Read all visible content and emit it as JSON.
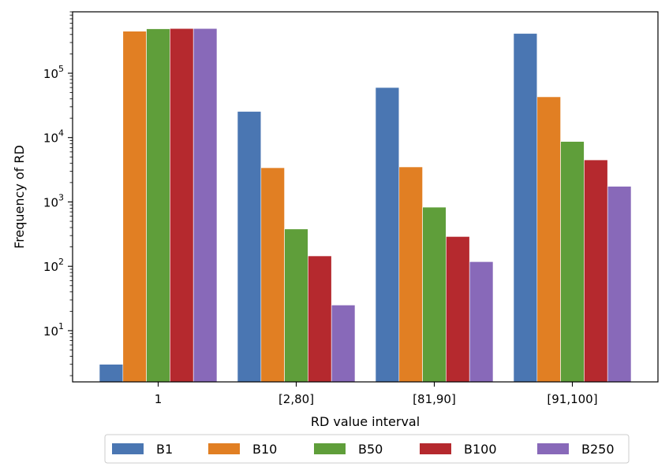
{
  "chart_data": {
    "type": "bar",
    "title": "",
    "xlabel": "RD value interval",
    "ylabel": "Frequency of RD",
    "yscale": "log",
    "ylim": [
      1.6,
      900000
    ],
    "y_ticks": [
      {
        "value": 10,
        "base": "10",
        "exp": "1"
      },
      {
        "value": 100,
        "base": "10",
        "exp": "2"
      },
      {
        "value": 1000,
        "base": "10",
        "exp": "3"
      },
      {
        "value": 10000,
        "base": "10",
        "exp": "4"
      },
      {
        "value": 100000,
        "base": "10",
        "exp": "5"
      }
    ],
    "categories": [
      "1",
      "[2,80]",
      "[81,90]",
      "[91,100]"
    ],
    "series": [
      {
        "name": "B1",
        "color": "#4a76b2",
        "values": [
          3,
          25500,
          60000,
          415000
        ]
      },
      {
        "name": "B10",
        "color": "#e17f23",
        "values": [
          450000,
          3400,
          3500,
          43000
        ]
      },
      {
        "name": "B50",
        "color": "#5f9e3a",
        "values": [
          490000,
          380,
          830,
          8700
        ]
      },
      {
        "name": "B100",
        "color": "#b5292e",
        "values": [
          495000,
          145,
          290,
          4500
        ]
      },
      {
        "name": "B250",
        "color": "#8869b9",
        "values": [
          495000,
          25,
          118,
          1750
        ]
      }
    ],
    "legend_position": "bottom-center",
    "grid": false
  }
}
